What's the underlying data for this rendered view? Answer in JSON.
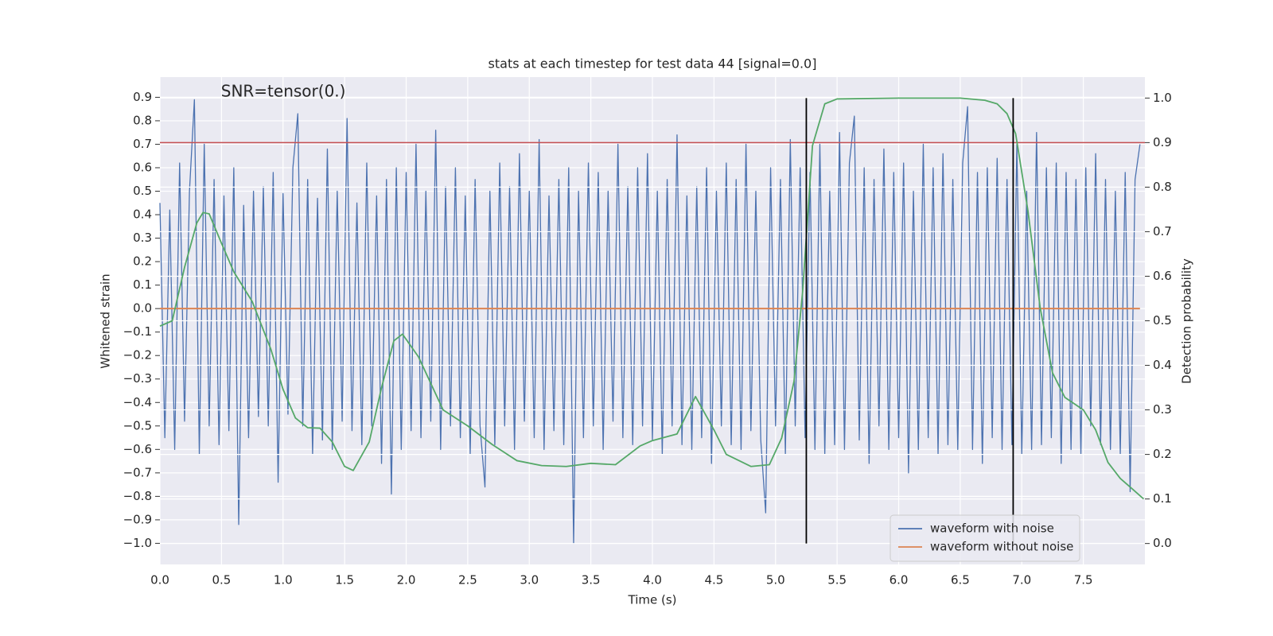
{
  "chart_data": {
    "type": "line",
    "title": "stats at each timestep for test data 44 [signal=0.0]",
    "annotation": "SNR=tensor(0.)",
    "xlabel": "Time (s)",
    "ylabel": "Whitened strain",
    "y2label": "Detection probability",
    "xlim": [
      0,
      8.0
    ],
    "ylim": [
      -1.09,
      0.986
    ],
    "y2lim": [
      -0.047,
      1.047
    ],
    "xticks": [
      {
        "value": 0,
        "label": "0.0"
      },
      0.5,
      {
        "value": 1,
        "label": "1.0"
      },
      1.5,
      {
        "value": 2,
        "label": "2.0"
      },
      2.5,
      {
        "value": 3,
        "label": "3.0"
      },
      3.5,
      {
        "value": 4,
        "label": "4.0"
      },
      4.5,
      {
        "value": 5,
        "label": "5.0"
      },
      5.5,
      {
        "value": 6,
        "label": "6.0"
      },
      6.5,
      {
        "value": 7,
        "label": "7.0"
      },
      7.5
    ],
    "yticks": [
      {
        "value": -1.0,
        "label": "−1.0"
      },
      {
        "value": -0.9,
        "label": "−0.9"
      },
      {
        "value": -0.8,
        "label": "−0.8"
      },
      {
        "value": -0.7,
        "label": "−0.7"
      },
      {
        "value": -0.6,
        "label": "−0.6"
      },
      {
        "value": -0.5,
        "label": "−0.5"
      },
      {
        "value": -0.4,
        "label": "−0.4"
      },
      {
        "value": -0.3,
        "label": "−0.3"
      },
      {
        "value": -0.2,
        "label": "−0.2"
      },
      {
        "value": -0.1,
        "label": "−0.1"
      },
      {
        "value": 0,
        "label": "0.0"
      },
      0.1,
      0.2,
      0.3,
      0.4,
      0.5,
      0.6,
      0.7,
      0.8,
      0.9
    ],
    "y2ticks": [
      {
        "value": 0,
        "label": "0.0"
      },
      0.1,
      0.2,
      0.3,
      0.4,
      0.5,
      0.6,
      0.7,
      0.8,
      0.9,
      {
        "value": 1,
        "label": "1.0"
      }
    ],
    "grid": true,
    "legend": "lower right",
    "series": [
      {
        "name": "waveform with noise",
        "color": "#4c72b0",
        "x": [
          0,
          0.04,
          0.08,
          0.12,
          0.16,
          0.2,
          0.24,
          0.28,
          0.32,
          0.36,
          0.4,
          0.44,
          0.48,
          0.52,
          0.56,
          0.6,
          0.64,
          0.68,
          0.72,
          0.76,
          0.8,
          0.84,
          0.88,
          0.92,
          0.96,
          1.0,
          1.04,
          1.08,
          1.12,
          1.16,
          1.2,
          1.24,
          1.28,
          1.32,
          1.36,
          1.4,
          1.44,
          1.48,
          1.52,
          1.56,
          1.6,
          1.64,
          1.68,
          1.72,
          1.76,
          1.8,
          1.84,
          1.88,
          1.92,
          1.96,
          2.0,
          2.04,
          2.08,
          2.12,
          2.16,
          2.2,
          2.24,
          2.28,
          2.32,
          2.36,
          2.4,
          2.44,
          2.48,
          2.52,
          2.56,
          2.6,
          2.64,
          2.68,
          2.72,
          2.76,
          2.8,
          2.84,
          2.88,
          2.92,
          2.96,
          3.0,
          3.04,
          3.08,
          3.12,
          3.16,
          3.2,
          3.24,
          3.28,
          3.32,
          3.36,
          3.4,
          3.44,
          3.48,
          3.52,
          3.56,
          3.6,
          3.64,
          3.68,
          3.72,
          3.76,
          3.8,
          3.84,
          3.88,
          3.92,
          3.96,
          4.0,
          4.04,
          4.08,
          4.12,
          4.16,
          4.2,
          4.24,
          4.28,
          4.32,
          4.36,
          4.4,
          4.44,
          4.48,
          4.52,
          4.56,
          4.6,
          4.64,
          4.68,
          4.72,
          4.76,
          4.8,
          4.84,
          4.88,
          4.92,
          4.96,
          5.0,
          5.04,
          5.08,
          5.12,
          5.16,
          5.2,
          5.24,
          5.28,
          5.32,
          5.36,
          5.4,
          5.44,
          5.48,
          5.52,
          5.56,
          5.6,
          5.64,
          5.68,
          5.72,
          5.76,
          5.8,
          5.84,
          5.88,
          5.92,
          5.96,
          6.0,
          6.04,
          6.08,
          6.12,
          6.16,
          6.2,
          6.24,
          6.28,
          6.32,
          6.36,
          6.4,
          6.44,
          6.48,
          6.52,
          6.56,
          6.6,
          6.64,
          6.68,
          6.72,
          6.76,
          6.8,
          6.84,
          6.88,
          6.92,
          6.96,
          7.0,
          7.04,
          7.08,
          7.12,
          7.16,
          7.2,
          7.24,
          7.28,
          7.32,
          7.36,
          7.4,
          7.44,
          7.48,
          7.52,
          7.56,
          7.6,
          7.64,
          7.68,
          7.72,
          7.76,
          7.8,
          7.84,
          7.88,
          7.92,
          7.96
        ],
        "values": [
          0.45,
          -0.55,
          0.42,
          -0.6,
          0.62,
          -0.48,
          0.5,
          0.89,
          -0.62,
          0.7,
          -0.5,
          0.55,
          -0.58,
          0.48,
          -0.52,
          0.6,
          -0.92,
          0.44,
          -0.55,
          0.5,
          -0.46,
          0.52,
          -0.5,
          0.58,
          -0.74,
          0.49,
          -0.45,
          0.6,
          0.83,
          -0.5,
          0.55,
          -0.62,
          0.47,
          -0.56,
          0.68,
          -0.6,
          0.5,
          -0.48,
          0.81,
          -0.52,
          0.45,
          -0.58,
          0.62,
          -0.5,
          0.48,
          -0.66,
          0.55,
          -0.79,
          0.6,
          -0.6,
          0.58,
          -0.52,
          0.7,
          -0.55,
          0.5,
          -0.48,
          0.76,
          -0.6,
          0.52,
          -0.5,
          0.6,
          -0.55,
          0.48,
          -0.62,
          0.55,
          -0.5,
          -0.76,
          0.5,
          -0.58,
          0.62,
          -0.5,
          0.52,
          -0.6,
          0.66,
          -0.48,
          0.5,
          -0.55,
          0.72,
          -0.6,
          0.48,
          -0.52,
          0.55,
          -0.58,
          0.6,
          -1.0,
          0.5,
          -0.55,
          0.62,
          -0.5,
          0.58,
          -0.6,
          0.5,
          -0.48,
          0.7,
          -0.55,
          0.52,
          -0.58,
          0.6,
          -0.5,
          0.66,
          -0.56,
          0.5,
          -0.62,
          0.55,
          -0.5,
          0.74,
          -0.58,
          0.48,
          -0.6,
          0.52,
          -0.55,
          0.6,
          -0.66,
          0.5,
          -0.5,
          0.62,
          -0.58,
          0.55,
          -0.6,
          0.7,
          -0.52,
          0.5,
          -0.56,
          -0.87,
          0.6,
          -0.5,
          0.55,
          -0.62,
          0.72,
          -0.5,
          0.6,
          -0.55,
          0.58,
          -0.6,
          0.7,
          -0.62,
          0.5,
          -0.58,
          0.75,
          -0.6,
          0.62,
          0.82,
          -0.56,
          0.6,
          -0.66,
          0.55,
          -0.5,
          0.68,
          -0.6,
          0.58,
          -0.55,
          0.62,
          -0.7,
          0.5,
          -0.6,
          0.7,
          -0.55,
          0.6,
          -0.62,
          0.66,
          -0.58,
          0.55,
          -0.6,
          0.62,
          0.86,
          -0.6,
          0.58,
          -0.66,
          0.6,
          -0.55,
          0.64,
          -0.6,
          0.55,
          -0.58,
          0.7,
          -0.62,
          0.5,
          -0.6,
          0.75,
          -0.58,
          0.6,
          -0.55,
          0.62,
          -0.66,
          0.58,
          -0.6,
          0.55,
          -0.62,
          0.6,
          -0.5,
          0.66,
          -0.58,
          0.55,
          -0.6,
          0.5,
          -0.62,
          0.58,
          -0.78,
          0.55,
          0.7
        ]
      },
      {
        "name": "waveform without noise",
        "color": "#dd8452",
        "x": [
          0,
          7.96
        ],
        "values": [
          0,
          0
        ]
      }
    ],
    "probability": {
      "color": "#55a868",
      "axis": "y2",
      "x": [
        0,
        0.1,
        0.2,
        0.3,
        0.35,
        0.4,
        0.5,
        0.6,
        0.75,
        0.9,
        1.0,
        1.1,
        1.2,
        1.3,
        1.4,
        1.5,
        1.57,
        1.7,
        1.8,
        1.9,
        1.97,
        2.1,
        2.3,
        2.5,
        2.7,
        2.9,
        3.1,
        3.3,
        3.5,
        3.7,
        3.9,
        4.0,
        4.2,
        4.35,
        4.5,
        4.6,
        4.8,
        4.95,
        5.05,
        5.15,
        5.22,
        5.3,
        5.4,
        5.5,
        6.0,
        6.5,
        6.7,
        6.8,
        6.88,
        6.95,
        7.05,
        7.15,
        7.25,
        7.35,
        7.5,
        7.6,
        7.7,
        7.8,
        7.9,
        7.99
      ],
      "values": [
        0.488,
        0.5,
        0.62,
        0.72,
        0.743,
        0.74,
        0.674,
        0.61,
        0.543,
        0.437,
        0.346,
        0.282,
        0.26,
        0.259,
        0.228,
        0.173,
        0.164,
        0.228,
        0.35,
        0.455,
        0.47,
        0.419,
        0.3,
        0.264,
        0.222,
        0.186,
        0.175,
        0.173,
        0.18,
        0.177,
        0.219,
        0.231,
        0.246,
        0.33,
        0.255,
        0.2,
        0.173,
        0.177,
        0.237,
        0.364,
        0.565,
        0.893,
        0.987,
        0.998,
        1.0,
        1.0,
        0.995,
        0.987,
        0.965,
        0.92,
        0.747,
        0.528,
        0.383,
        0.328,
        0.3,
        0.255,
        0.182,
        0.146,
        0.122,
        0.1
      ]
    },
    "threshold": {
      "value": 0.9,
      "color": "#c44e52",
      "axis": "y2"
    },
    "vlines": {
      "x": [
        5.25,
        6.93
      ],
      "color": "#000000"
    }
  }
}
